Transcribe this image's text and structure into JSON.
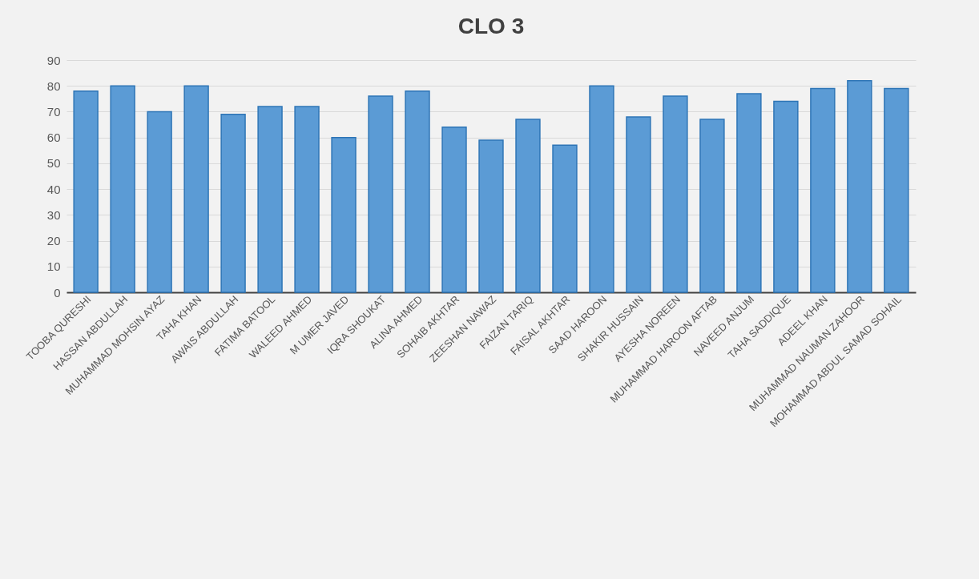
{
  "chart_data": {
    "type": "bar",
    "title": "CLO 3",
    "categories": [
      "TOOBA QURESHI",
      "HASSAN ABDULLAH",
      "MUHAMMAD MOHSIN AYAZ",
      "TAHA KHAN",
      "AWAIS ABDULLAH",
      "FATIMA BATOOL",
      "WALEED AHMED",
      "M UMER JAVED",
      "IQRA SHOUKAT",
      "ALINA AHMED",
      "SOHAIB AKHTAR",
      "ZEESHAN NAWAZ",
      "FAIZAN TARIQ",
      "FAISAL AKHTAR",
      "SAAD HAROON",
      "SHAKIR HUSSAIN",
      "AYESHA NOREEN",
      "MUHAMMAD HAROON AFTAB",
      "NAVEED ANJUM",
      "TAHA SADDIQUE",
      "ADEEL KHAN",
      "MUHAMMAD NAUMAN ZAHOOR",
      "MOHAMMAD ABDUL SAMAD SOHAIL"
    ],
    "values": [
      78,
      80,
      70,
      80,
      69,
      72,
      72,
      60,
      76,
      78,
      64,
      59,
      67,
      57,
      80,
      68,
      76,
      67,
      77,
      74,
      79,
      82,
      79
    ],
    "color": "#5b9bd5",
    "ylim": [
      0,
      90
    ],
    "yticks": [
      0,
      10,
      20,
      30,
      40,
      50,
      60,
      70,
      80,
      90
    ],
    "grid": "y"
  }
}
